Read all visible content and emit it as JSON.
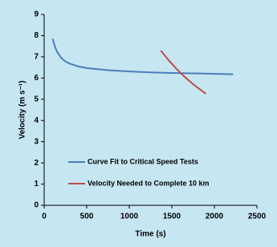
{
  "chart_data": {
    "type": "line",
    "x_label": "Time (s)",
    "y_label": "Velocity (m s⁻¹)",
    "xlim": [
      0,
      2500
    ],
    "xticks": [
      0,
      500,
      1000,
      1500,
      2000,
      2500
    ],
    "ylim": [
      0,
      9
    ],
    "yticks": [
      0,
      1,
      2,
      3,
      4,
      5,
      6,
      7,
      8,
      9
    ],
    "legend": "lower left",
    "series": [
      {
        "name": "Curve Fit to Critical Speed Tests",
        "color": "#4a7ebb",
        "x": [
          100,
          125,
          150,
          200,
          250,
          300,
          400,
          500,
          750,
          1000,
          1250,
          1500,
          1750,
          2000,
          2220
        ],
        "values": [
          7.85,
          7.5,
          7.25,
          6.95,
          6.78,
          6.68,
          6.55,
          6.47,
          6.37,
          6.31,
          6.27,
          6.24,
          6.22,
          6.2,
          6.18
        ]
      },
      {
        "name": "Velocity Needed to Complete 10 km",
        "color": "#be4b48",
        "x": [
          1370,
          1450,
          1550,
          1650,
          1750,
          1900
        ],
        "values": [
          7.3,
          6.9,
          6.45,
          6.06,
          5.71,
          5.26
        ]
      }
    ]
  }
}
